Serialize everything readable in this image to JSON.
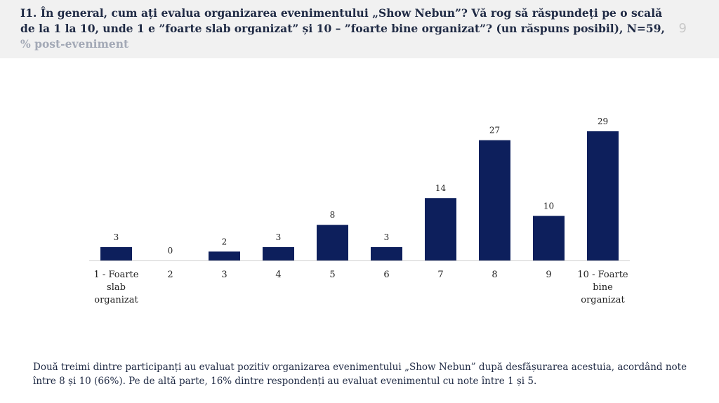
{
  "header": {
    "title": "I1. În general, cum ați evalua organizarea evenimentului „Show Nebun”? Vă rog să răspundeți pe o scală de la 1 la 10, unde 1 e ”foarte slab organizat” și 10 – ”foarte bine organizat”? (un răspuns posibil), N=59,",
    "title_suffix": "% post-eveniment",
    "page_number": "9"
  },
  "chart_data": {
    "type": "bar",
    "categories": [
      "1 - Foarte slab organizat",
      "2",
      "3",
      "4",
      "5",
      "6",
      "7",
      "8",
      "9",
      "10 - Foarte bine organizat"
    ],
    "values": [
      3,
      0,
      2,
      3,
      8,
      3,
      14,
      27,
      10,
      29
    ],
    "title": "",
    "xlabel": "",
    "ylabel": "",
    "ylim": [
      0,
      29
    ],
    "grid": false,
    "legend": "none",
    "bar_color": "#0d1f5c"
  },
  "caption": "Două treimi dintre participanți au evaluat pozitiv organizarea evenimentului „Show Nebun” după desfășurarea acestuia, acordând note între 8 și 10 (66%). Pe de altă parte, 16% dintre respondenți au evaluat evenimentul cu note între 1 și 5."
}
